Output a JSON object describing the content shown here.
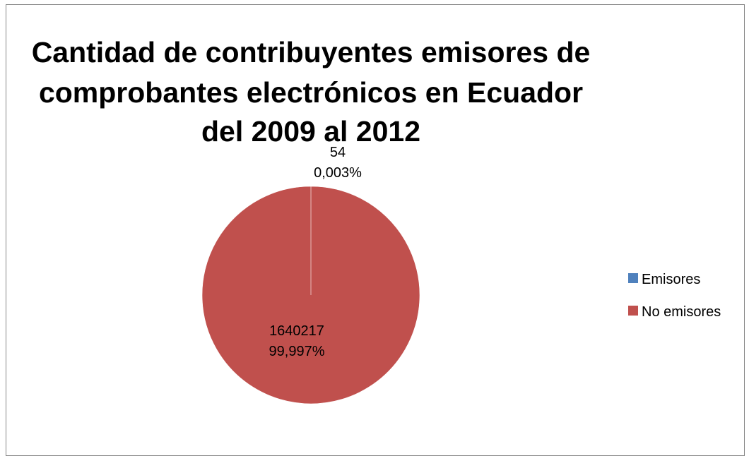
{
  "chart_data": {
    "type": "pie",
    "title": "Cantidad de contribuyentes emisores de comprobantes electrónicos en Ecuador del 2009 al 2012",
    "title_lines": [
      "Cantidad de contribuyentes emisores de",
      "comprobantes electrónicos en Ecuador",
      "del 2009 al 2012"
    ],
    "categories": [
      "Emisores",
      "No emisores"
    ],
    "values": [
      54,
      1640217
    ],
    "percent_labels": [
      "0,003%",
      "99,997%"
    ],
    "value_labels": [
      "54",
      "1640217"
    ],
    "colors": [
      "#4F81BD",
      "#C0504D"
    ],
    "legend": {
      "position": "right",
      "entries": [
        "Emisores",
        "No emisores"
      ]
    }
  }
}
